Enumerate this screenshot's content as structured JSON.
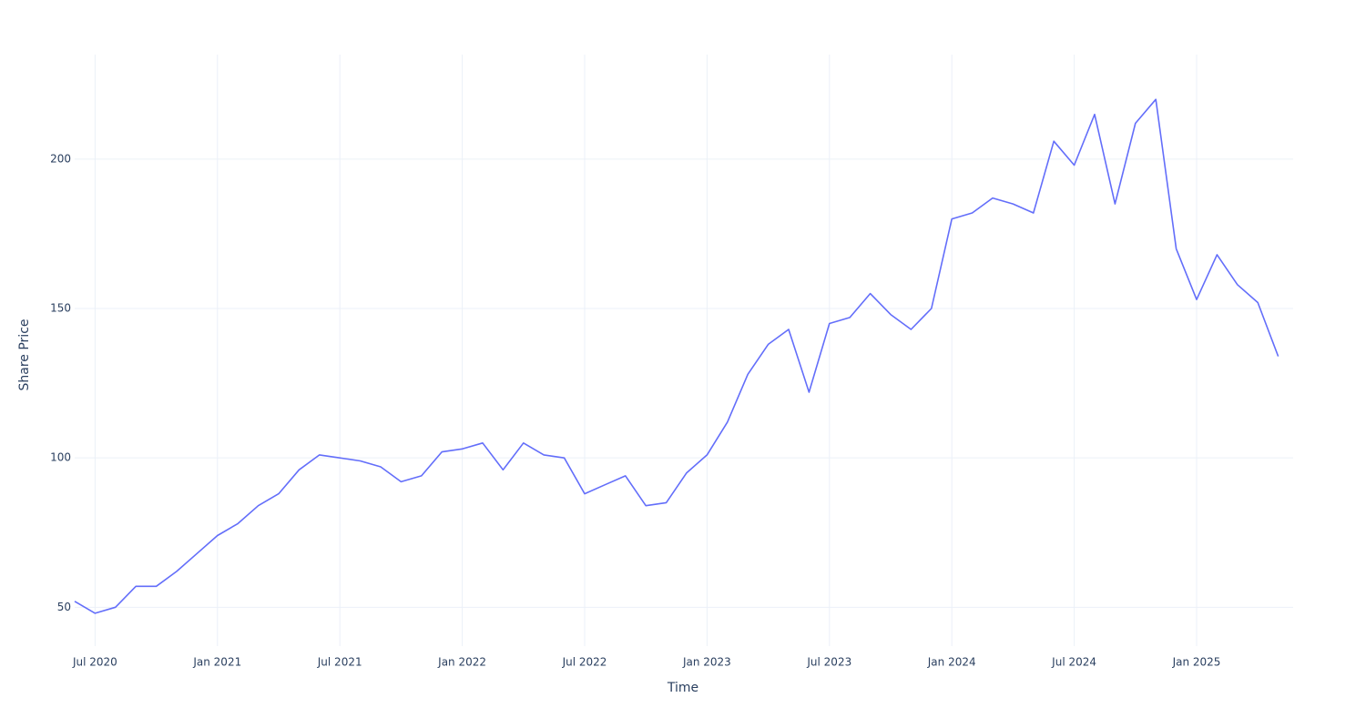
{
  "chart_data": {
    "type": "line",
    "x_label": "Time",
    "y_label": "Share Price",
    "x": [
      "2020-06",
      "2020-07",
      "2020-08",
      "2020-09",
      "2020-10",
      "2020-11",
      "2020-12",
      "2021-01",
      "2021-02",
      "2021-03",
      "2021-04",
      "2021-05",
      "2021-06",
      "2021-07",
      "2021-08",
      "2021-09",
      "2021-10",
      "2021-11",
      "2021-12",
      "2022-01",
      "2022-02",
      "2022-03",
      "2022-04",
      "2022-05",
      "2022-06",
      "2022-07",
      "2022-08",
      "2022-09",
      "2022-10",
      "2022-11",
      "2022-12",
      "2023-01",
      "2023-02",
      "2023-03",
      "2023-04",
      "2023-05",
      "2023-06",
      "2023-07",
      "2023-08",
      "2023-09",
      "2023-10",
      "2023-11",
      "2023-12",
      "2024-01",
      "2024-02",
      "2024-03",
      "2024-04",
      "2024-05",
      "2024-06",
      "2024-07",
      "2024-08",
      "2024-09",
      "2024-10",
      "2024-11",
      "2024-12",
      "2025-01",
      "2025-02",
      "2025-03",
      "2025-04",
      "2025-05"
    ],
    "values": [
      52,
      48,
      50,
      57,
      57,
      62,
      68,
      74,
      78,
      84,
      88,
      96,
      101,
      100,
      99,
      97,
      92,
      94,
      102,
      103,
      105,
      96,
      105,
      101,
      100,
      88,
      91,
      94,
      84,
      85,
      95,
      101,
      112,
      128,
      138,
      143,
      122,
      145,
      147,
      155,
      148,
      143,
      150,
      180,
      182,
      187,
      185,
      182,
      206,
      198,
      215,
      185,
      212,
      220,
      170,
      153,
      168,
      158,
      152,
      134
    ],
    "color": "#636efa",
    "xlim": [
      "2020-06",
      "2025-06"
    ],
    "xticks": [
      {
        "value": "2020-07",
        "label": "Jul 2020"
      },
      {
        "value": "2021-01",
        "label": "Jan 2021"
      },
      {
        "value": "2021-07",
        "label": "Jul 2021"
      },
      {
        "value": "2022-01",
        "label": "Jan 2022"
      },
      {
        "value": "2022-07",
        "label": "Jul 2022"
      },
      {
        "value": "2023-01",
        "label": "Jan 2023"
      },
      {
        "value": "2023-07",
        "label": "Jul 2023"
      },
      {
        "value": "2024-01",
        "label": "Jan 2024"
      },
      {
        "value": "2024-07",
        "label": "Jul 2024"
      },
      {
        "value": "2025-01",
        "label": "Jan 2025"
      }
    ],
    "ylim": [
      37,
      235
    ],
    "yticks": [
      50,
      100,
      150,
      200
    ],
    "grid": true
  }
}
